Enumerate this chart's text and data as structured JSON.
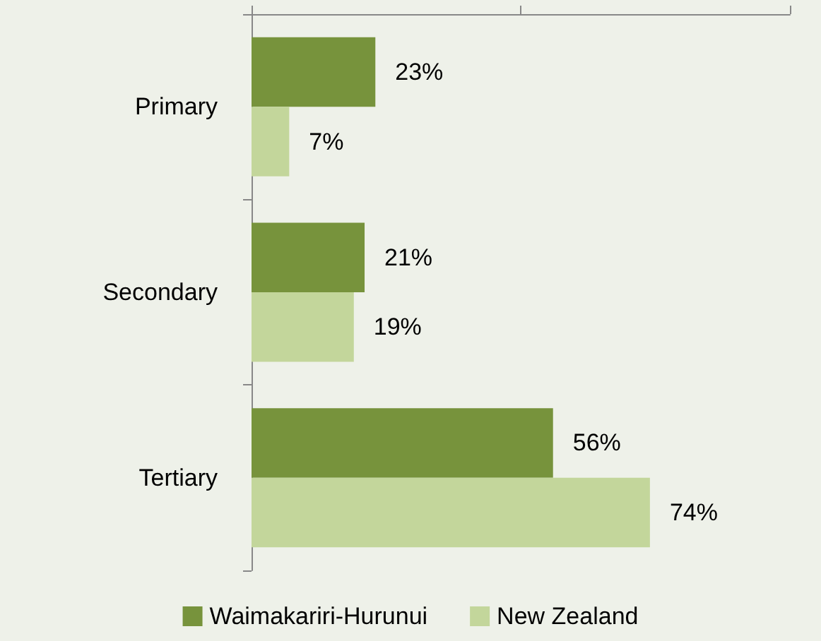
{
  "chart_data": {
    "type": "bar",
    "orientation": "horizontal",
    "categories": [
      "Primary",
      "Secondary",
      "Tertiary"
    ],
    "series": [
      {
        "name": "Waimakariri-Hurunui",
        "color": "#77933c",
        "values": [
          23,
          21,
          56
        ],
        "value_labels": [
          "23%",
          "21%",
          "56%"
        ]
      },
      {
        "name": "New Zealand",
        "color": "#c3d69b",
        "values": [
          7,
          19,
          74
        ],
        "value_labels": [
          "7%",
          "19%",
          "74%"
        ]
      }
    ],
    "xlim": [
      0,
      100
    ],
    "xticks": [
      {
        "value": 0,
        "label": null
      },
      {
        "value": 50,
        "label": null
      },
      {
        "value": 100,
        "label": null
      }
    ],
    "tick_labels": "y",
    "grid": false,
    "legend": "bottom"
  }
}
